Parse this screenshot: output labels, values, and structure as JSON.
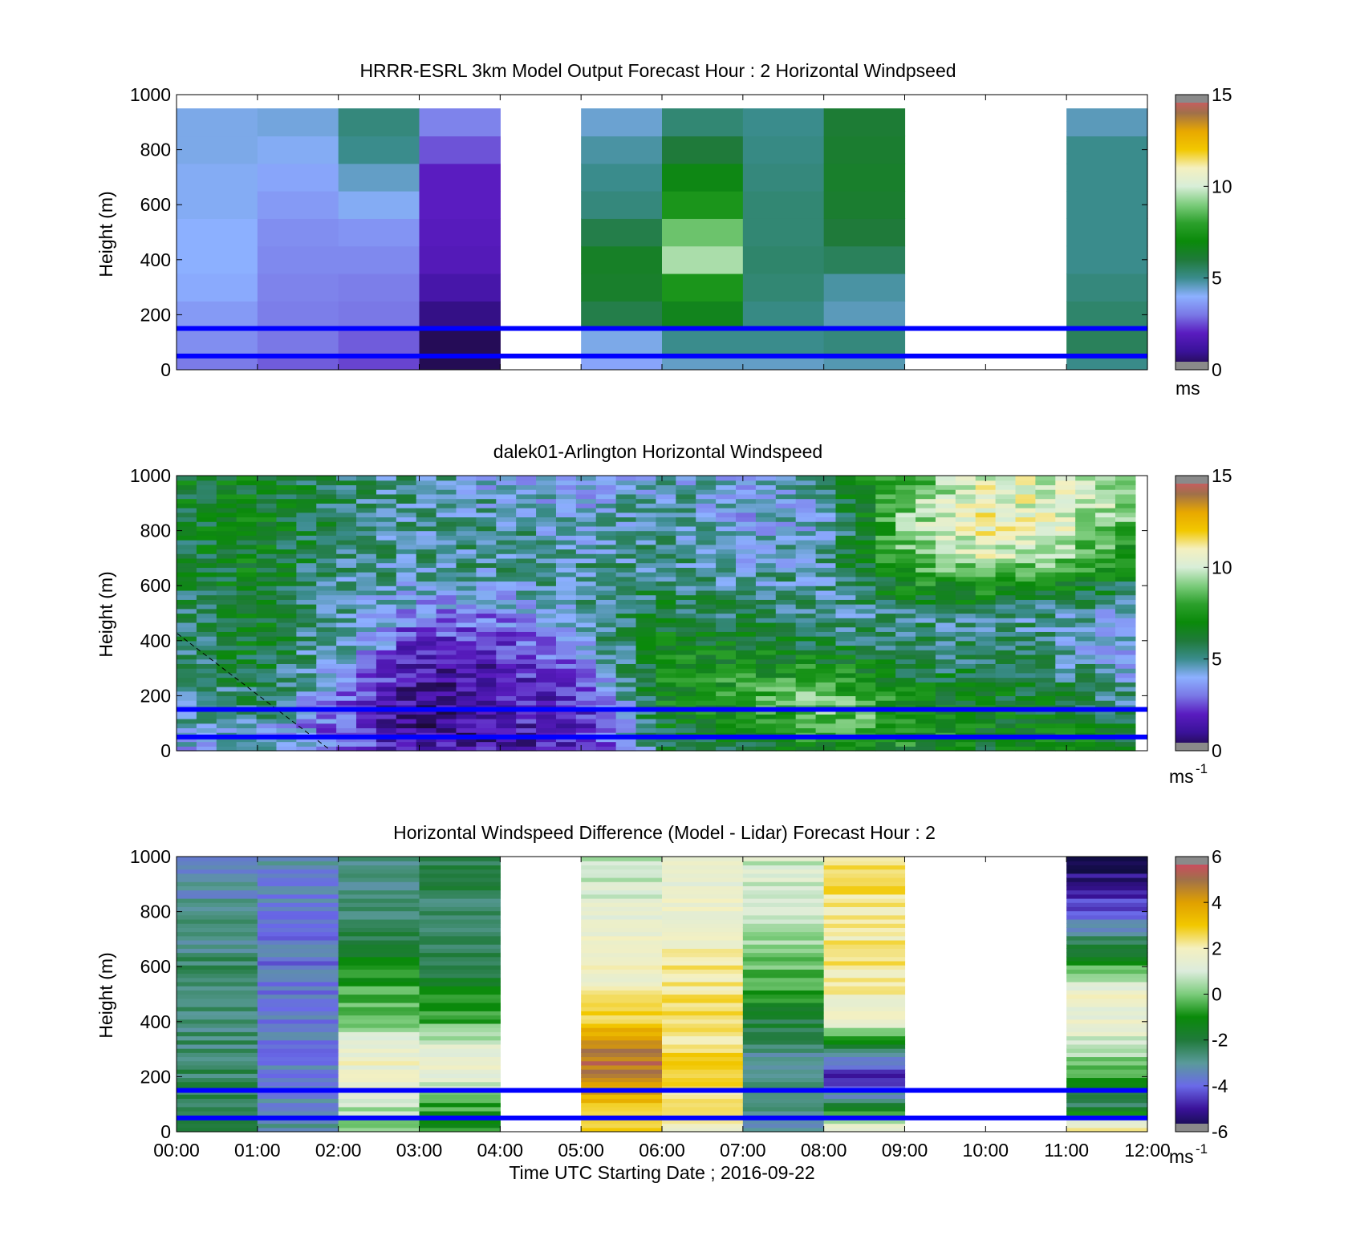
{
  "figure": {
    "xlabel": "Time UTC  Starting Date ; 2016-09-22",
    "x_tick_labels": [
      "00:00",
      "01:00",
      "02:00",
      "03:00",
      "04:00",
      "05:00",
      "06:00",
      "07:00",
      "08:00",
      "09:00",
      "10:00",
      "11:00",
      "12:00"
    ]
  },
  "colors": {
    "highlight_lines": "#0000ff",
    "speed_colormap": [
      "#1c0a3a",
      "#3a1299",
      "#5a1cc0",
      "#7a78e6",
      "#8cb0ff",
      "#3a8c8c",
      "#1f7a3a",
      "#0a8a0a",
      "#2ca02c",
      "#7ccc7c",
      "#d8eed8",
      "#f4f0c0",
      "#f2c800",
      "#e8a800",
      "#a0704a",
      "#e05070"
    ],
    "diff_colormap": [
      "#0c0c3a",
      "#3a1299",
      "#6a6ae8",
      "#5a9a9a",
      "#1f7a3a",
      "#0a8a0a",
      "#7ccc7c",
      "#dcecdc",
      "#f4f0c0",
      "#f2c800",
      "#e0a000",
      "#a0704a",
      "#e03a6a"
    ]
  },
  "chart_data": [
    {
      "type": "heatmap",
      "title": "HRRR-ESRL 3km Model Output   Forecast Hour : 2 Horizontal Windpseed",
      "ylabel": "Height (m)",
      "xlim": [
        "00:00",
        "12:00"
      ],
      "ylim": [
        0,
        1000
      ],
      "y_tick_labels": [
        "0",
        "200",
        "400",
        "600",
        "800",
        "1000"
      ],
      "colorbar": {
        "min": 0,
        "max": 15,
        "tick_labels": [
          "0",
          "5",
          "10",
          "15"
        ],
        "unit": "ms"
      },
      "reference_heights_m": [
        50,
        150
      ],
      "columns": [
        {
          "start": "00:00",
          "end": "01:00",
          "bottom_to_top_ms": [
            3.4,
            3.6,
            3.9,
            4.0,
            4.0,
            4.1,
            4.1,
            4.2,
            4.2
          ]
        },
        {
          "start": "01:00",
          "end": "02:00",
          "bottom_to_top_ms": [
            3.0,
            3.1,
            3.2,
            3.3,
            3.4,
            3.6,
            3.8,
            4.1,
            4.3
          ]
        },
        {
          "start": "02:00",
          "end": "03:00",
          "bottom_to_top_ms": [
            2.7,
            3.0,
            3.1,
            3.3,
            3.5,
            4.1,
            4.5,
            5.0,
            5.2
          ]
        },
        {
          "start": "03:00",
          "end": "04:00",
          "bottom_to_top_ms": [
            0.3,
            0.8,
            1.4,
            1.8,
            1.9,
            2.0,
            2.0,
            2.6,
            3.2
          ]
        },
        {
          "start": "04:00",
          "end": "05:00",
          "bottom_to_top_ms": null
        },
        {
          "start": "05:00",
          "end": "06:00",
          "bottom_to_top_ms": [
            4.2,
            5.8,
            6.3,
            6.4,
            5.8,
            5.2,
            5.0,
            4.8,
            4.4
          ]
        },
        {
          "start": "06:00",
          "end": "07:00",
          "bottom_to_top_ms": [
            5.0,
            6.6,
            7.5,
            9.5,
            8.8,
            7.5,
            6.8,
            6.0,
            5.3
          ]
        },
        {
          "start": "07:00",
          "end": "08:00",
          "bottom_to_top_ms": [
            5.0,
            5.1,
            5.3,
            5.4,
            5.3,
            5.3,
            5.2,
            5.1,
            5.0
          ]
        },
        {
          "start": "08:00",
          "end": "09:00",
          "bottom_to_top_ms": [
            5.2,
            4.6,
            4.8,
            5.6,
            6.0,
            6.2,
            6.3,
            6.2,
            6.1
          ]
        },
        {
          "start": "09:00",
          "end": "10:00",
          "bottom_to_top_ms": null
        },
        {
          "start": "10:00",
          "end": "11:00",
          "bottom_to_top_ms": null
        },
        {
          "start": "11:00",
          "end": "12:00",
          "bottom_to_top_ms": [
            5.6,
            5.4,
            5.2,
            5.0,
            5.0,
            5.0,
            5.0,
            5.0,
            4.6
          ]
        }
      ]
    },
    {
      "type": "heatmap",
      "title": "dalek01-Arlington  Horizontal Windspeed",
      "ylabel": "Height (m)",
      "xlim": [
        "00:00",
        "12:00"
      ],
      "ylim": [
        0,
        1000
      ],
      "y_tick_labels": [
        "0",
        "200",
        "400",
        "600",
        "800",
        "1000"
      ],
      "colorbar": {
        "min": 0,
        "max": 15,
        "tick_labels": [
          "0",
          "5",
          "10",
          "15"
        ],
        "unit": "ms",
        "unit_superscript": "-1"
      },
      "reference_heights_m": [
        50,
        150
      ],
      "anchor_times_h": [
        0,
        1,
        2,
        3,
        4,
        5,
        6,
        7,
        8,
        9,
        10,
        11,
        12
      ],
      "profiles_ms_at_heights_m": {
        "heights": [
          0,
          100,
          200,
          300,
          400,
          500,
          600,
          700,
          800,
          900,
          1000
        ],
        "values": [
          [
            4.0,
            4.6,
            5.0,
            5.2,
            5.4,
            5.6,
            5.7,
            5.9,
            6.0,
            6.2,
            6.3
          ],
          [
            4.2,
            4.8,
            5.6,
            6.1,
            6.4,
            6.5,
            6.5,
            6.6,
            6.6,
            6.6,
            6.6
          ],
          [
            3.0,
            2.6,
            3.4,
            4.0,
            4.8,
            5.0,
            5.1,
            5.2,
            5.4,
            5.5,
            5.5
          ],
          [
            1.6,
            0.5,
            1.0,
            1.3,
            2.0,
            3.2,
            4.4,
            5.0,
            5.0,
            5.0,
            5.0
          ],
          [
            1.4,
            1.6,
            1.6,
            1.8,
            2.4,
            3.4,
            4.5,
            5.1,
            5.3,
            4.6,
            3.9
          ],
          [
            1.6,
            1.8,
            2.0,
            2.6,
            4.2,
            5.1,
            5.0,
            4.8,
            4.2,
            4.0,
            3.6
          ],
          [
            5.5,
            6.2,
            7.0,
            7.2,
            6.6,
            6.0,
            5.5,
            5.2,
            5.2,
            5.0,
            4.6
          ],
          [
            6.0,
            7.3,
            7.8,
            7.4,
            6.6,
            5.5,
            5.0,
            4.4,
            3.8,
            3.8,
            4.0
          ],
          [
            6.8,
            8.6,
            8.8,
            7.4,
            5.6,
            5.0,
            5.0,
            4.8,
            4.6,
            4.8,
            5.4
          ],
          [
            7.0,
            8.2,
            7.0,
            6.0,
            5.4,
            5.2,
            6.8,
            8.6,
            9.0,
            8.8,
            8.2
          ],
          [
            6.6,
            6.8,
            6.4,
            5.6,
            5.2,
            5.2,
            7.6,
            10.0,
            10.8,
            10.6,
            10.0
          ],
          [
            7.0,
            6.6,
            5.8,
            5.2,
            4.8,
            5.0,
            6.8,
            9.0,
            10.0,
            10.3,
            10.3
          ],
          [
            6.0,
            5.4,
            4.8,
            4.0,
            3.4,
            3.6,
            5.4,
            6.6,
            7.6,
            8.6,
            9.2
          ]
        ]
      }
    },
    {
      "type": "heatmap",
      "title": "Horizontal Windspeed Difference (Model - Lidar) Forecast Hour : 2",
      "ylabel": "Height (m)",
      "xlabel": "Time UTC  Starting Date ; 2016-09-22",
      "xlim": [
        "00:00",
        "12:00"
      ],
      "ylim": [
        0,
        1000
      ],
      "y_tick_labels": [
        "0",
        "200",
        "400",
        "600",
        "800",
        "1000"
      ],
      "colorbar": {
        "min": -6,
        "max": 6,
        "tick_labels": [
          "-6",
          "-4",
          "-2",
          "0",
          "2",
          "4",
          "6"
        ],
        "unit": "ms",
        "unit_superscript": "-1"
      },
      "reference_heights_m": [
        50,
        150
      ],
      "columns": [
        {
          "start": "00:00",
          "end": "01:00",
          "heights_m": [
            20,
            100,
            200,
            300,
            400,
            500,
            600,
            700,
            800,
            900,
            980
          ],
          "diff_ms": [
            -2.2,
            -2.3,
            -2.4,
            -2.6,
            -2.7,
            -2.6,
            -2.6,
            -2.8,
            -3.0,
            -3.2,
            -3.6
          ]
        },
        {
          "start": "01:00",
          "end": "02:00",
          "heights_m": [
            20,
            100,
            200,
            300,
            400,
            500,
            600,
            700,
            800,
            900,
            980
          ],
          "diff_ms": [
            -2.9,
            -3.4,
            -3.6,
            -3.7,
            -3.8,
            -3.8,
            -3.8,
            -3.7,
            -3.6,
            -3.4,
            -3.2
          ]
        },
        {
          "start": "02:00",
          "end": "03:00",
          "heights_m": [
            20,
            100,
            200,
            300,
            400,
            500,
            600,
            700,
            800,
            900,
            980
          ],
          "diff_ms": [
            0.3,
            0.6,
            1.7,
            1.6,
            0.1,
            -0.4,
            -1.0,
            -2.2,
            -2.6,
            -2.8,
            -2.8
          ]
        },
        {
          "start": "03:00",
          "end": "04:00",
          "heights_m": [
            20,
            100,
            200,
            300,
            400,
            500,
            600,
            700,
            800,
            900,
            980
          ],
          "diff_ms": [
            -1.0,
            -0.6,
            1.5,
            1.2,
            -0.5,
            -1.2,
            -2.1,
            -2.5,
            -2.4,
            -2.2,
            -2.0
          ]
        },
        {
          "start": "04:00",
          "end": "05:00",
          "diff_ms": null
        },
        {
          "start": "05:00",
          "end": "06:00",
          "heights_m": [
            20,
            100,
            200,
            300,
            400,
            500,
            600,
            700,
            800,
            900,
            980
          ],
          "diff_ms": [
            2.8,
            3.2,
            4.8,
            5.0,
            3.0,
            2.3,
            1.6,
            1.6,
            1.2,
            0.9,
            0.6
          ]
        },
        {
          "start": "06:00",
          "end": "07:00",
          "heights_m": [
            20,
            100,
            200,
            300,
            400,
            500,
            600,
            700,
            800,
            900,
            980
          ],
          "diff_ms": [
            1.5,
            2.4,
            2.6,
            2.5,
            2.4,
            2.3,
            2.2,
            2.0,
            1.8,
            1.5,
            1.5
          ]
        },
        {
          "start": "07:00",
          "end": "08:00",
          "heights_m": [
            20,
            100,
            200,
            300,
            400,
            500,
            600,
            700,
            800,
            900,
            980
          ],
          "diff_ms": [
            -2.9,
            -3.0,
            -2.9,
            -2.8,
            -2.0,
            -0.8,
            -0.3,
            0.3,
            1.0,
            1.0,
            0.9
          ]
        },
        {
          "start": "08:00",
          "end": "09:00",
          "heights_m": [
            20,
            100,
            200,
            300,
            400,
            500,
            600,
            700,
            800,
            900,
            980
          ],
          "diff_ms": [
            1.3,
            -2.2,
            -5.0,
            -2.4,
            1.4,
            2.1,
            2.2,
            2.2,
            2.3,
            2.4,
            2.5
          ]
        },
        {
          "start": "09:00",
          "end": "10:00",
          "diff_ms": null
        },
        {
          "start": "10:00",
          "end": "11:00",
          "diff_ms": null
        },
        {
          "start": "11:00",
          "end": "12:00",
          "heights_m": [
            20,
            100,
            200,
            300,
            400,
            500,
            600,
            700,
            800,
            900,
            980
          ],
          "diff_ms": [
            1.8,
            -2.5,
            -0.8,
            0.8,
            1.6,
            1.6,
            -0.6,
            -2.5,
            -4.0,
            -5.0,
            -5.8
          ]
        }
      ]
    }
  ]
}
